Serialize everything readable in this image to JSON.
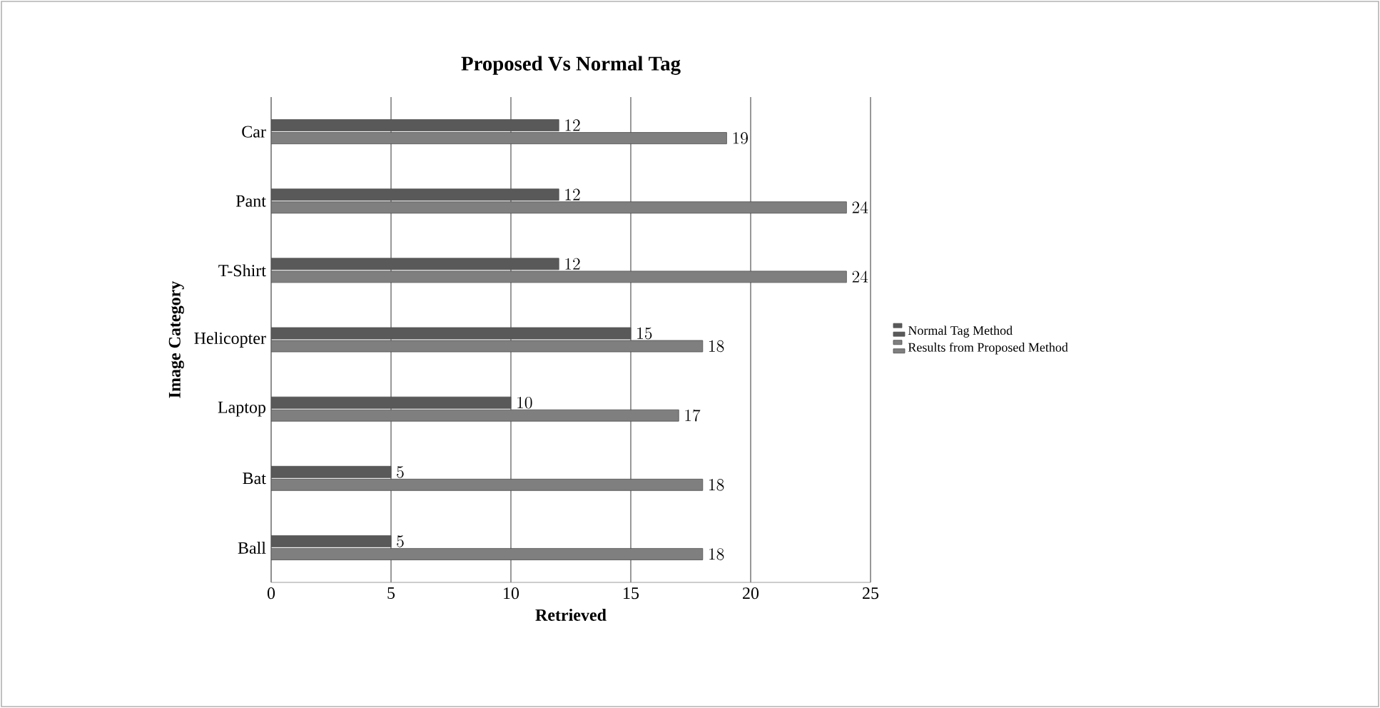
{
  "chart_data": {
    "type": "bar",
    "orientation": "horizontal",
    "title": "Proposed Vs Normal Tag",
    "xlabel": "Retrieved",
    "ylabel": "Image Category",
    "categories": [
      "Car",
      "Pant",
      "T-Shirt",
      "Helicopter",
      "Laptop",
      "Bat",
      "Ball"
    ],
    "series": [
      {
        "name": "Normal Tag Method",
        "color": "#595959",
        "values": [
          12,
          12,
          12,
          15,
          10,
          5,
          5
        ]
      },
      {
        "name": "Results from Proposed Method",
        "color": "#7f7f7f",
        "values": [
          19,
          24,
          24,
          18,
          17,
          18,
          18
        ]
      }
    ],
    "xlim": [
      0,
      25
    ],
    "xticks": [
      0,
      5,
      10,
      15,
      20,
      25
    ],
    "grid": "x",
    "legend": "right",
    "data_labels": true
  }
}
